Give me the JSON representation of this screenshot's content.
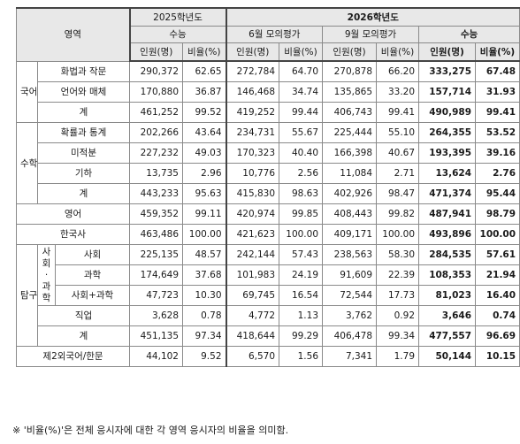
{
  "header": {
    "area": "영역",
    "year2025": "2025학년도",
    "year2026": "2026학년도",
    "suneung": "수능",
    "june_mock": "6월 모의평가",
    "sept_mock": "9월 모의평가",
    "count": "인원(명)",
    "ratio": "비율(%)"
  },
  "groups": {
    "korean": "국어",
    "math": "수학",
    "english": "영어",
    "history": "한국사",
    "inquiry": "탐구",
    "social_science_top": "사회",
    "social_science_mid": "·",
    "social_science_bottom": "과학",
    "second_lang": "제2외국어/한문"
  },
  "rows": {
    "k1": {
      "label": "화법과 작문",
      "v": [
        "290,372",
        "62.65",
        "272,784",
        "64.70",
        "270,878",
        "66.20",
        "333,275",
        "67.48"
      ]
    },
    "k2": {
      "label": "언어와 매체",
      "v": [
        "170,880",
        "36.87",
        "146,468",
        "34.74",
        "135,865",
        "33.20",
        "157,714",
        "31.93"
      ]
    },
    "k3": {
      "label": "계",
      "v": [
        "461,252",
        "99.52",
        "419,252",
        "99.44",
        "406,743",
        "99.41",
        "490,989",
        "99.41"
      ]
    },
    "m1": {
      "label": "확률과 통계",
      "v": [
        "202,266",
        "43.64",
        "234,731",
        "55.67",
        "225,444",
        "55.10",
        "264,355",
        "53.52"
      ]
    },
    "m2": {
      "label": "미적분",
      "v": [
        "227,232",
        "49.03",
        "170,323",
        "40.40",
        "166,398",
        "40.67",
        "193,395",
        "39.16"
      ]
    },
    "m3": {
      "label": "기하",
      "v": [
        "13,735",
        "2.96",
        "10,776",
        "2.56",
        "11,084",
        "2.71",
        "13,624",
        "2.76"
      ]
    },
    "m4": {
      "label": "계",
      "v": [
        "443,233",
        "95.63",
        "415,830",
        "98.63",
        "402,926",
        "98.47",
        "471,374",
        "95.44"
      ]
    },
    "e1": {
      "v": [
        "459,352",
        "99.11",
        "420,974",
        "99.85",
        "408,443",
        "99.82",
        "487,941",
        "98.79"
      ]
    },
    "h1": {
      "v": [
        "463,486",
        "100.00",
        "421,623",
        "100.00",
        "409,171",
        "100.00",
        "493,896",
        "100.00"
      ]
    },
    "t1": {
      "label": "사회",
      "v": [
        "225,135",
        "48.57",
        "242,144",
        "57.43",
        "238,563",
        "58.30",
        "284,535",
        "57.61"
      ]
    },
    "t2": {
      "label": "과학",
      "v": [
        "174,649",
        "37.68",
        "101,983",
        "24.19",
        "91,609",
        "22.39",
        "108,353",
        "21.94"
      ]
    },
    "t3": {
      "label": "사회+과학",
      "v": [
        "47,723",
        "10.30",
        "69,745",
        "16.54",
        "72,544",
        "17.73",
        "81,023",
        "16.40"
      ]
    },
    "t4": {
      "label": "직업",
      "v": [
        "3,628",
        "0.78",
        "4,772",
        "1.13",
        "3,762",
        "0.92",
        "3,646",
        "0.74"
      ]
    },
    "t5": {
      "label": "계",
      "v": [
        "451,135",
        "97.34",
        "418,644",
        "99.29",
        "406,478",
        "99.34",
        "477,557",
        "96.69"
      ]
    },
    "f1": {
      "v": [
        "44,102",
        "9.52",
        "6,570",
        "1.56",
        "7,341",
        "1.79",
        "50,144",
        "10.15"
      ]
    }
  },
  "footnote": "※ '비율(%)'은 전체 응시자에 대한 각 영역 응시자의 비율을 의미함."
}
